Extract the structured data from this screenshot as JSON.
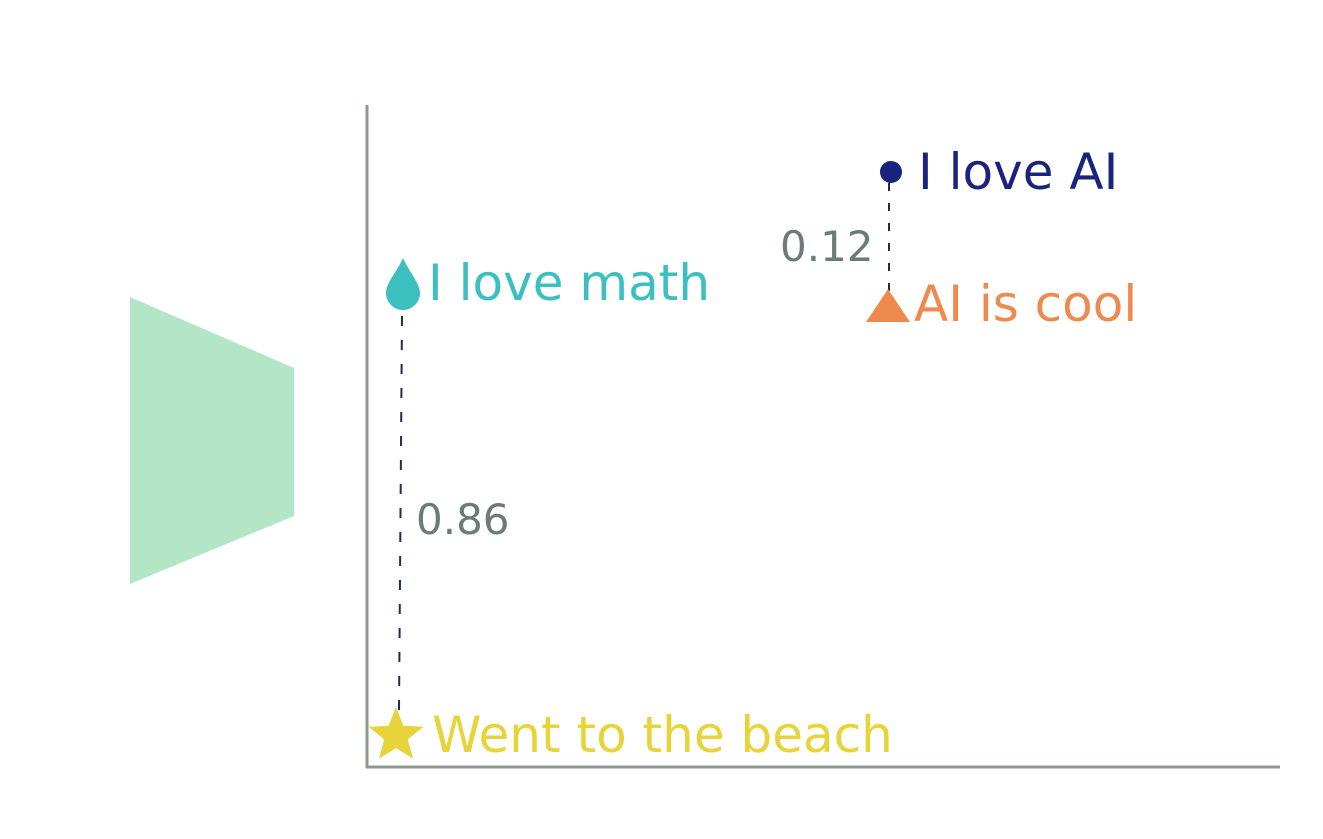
{
  "points": [
    {
      "id": "ai",
      "label": "I love AI",
      "marker": "circle-dot-icon",
      "color": "#1a237e"
    },
    {
      "id": "math",
      "label": "I love math",
      "marker": "droplet-icon",
      "color": "#3bbfbf"
    },
    {
      "id": "cool",
      "label": "AI is cool",
      "marker": "triangle-icon",
      "color": "#ef8a4e"
    },
    {
      "id": "beach",
      "label": "Went to the beach",
      "marker": "star-icon",
      "color": "#e6d43a"
    }
  ],
  "distances": [
    {
      "from": "ai",
      "to": "cool",
      "value": "0.12"
    },
    {
      "from": "math",
      "to": "beach",
      "value": "0.86"
    }
  ],
  "colors": {
    "axis": "#8a9a8e",
    "dash": "#1f2d4a",
    "distance_text": "#6b7b7a",
    "encoder_shape": "#b3e6c6"
  }
}
